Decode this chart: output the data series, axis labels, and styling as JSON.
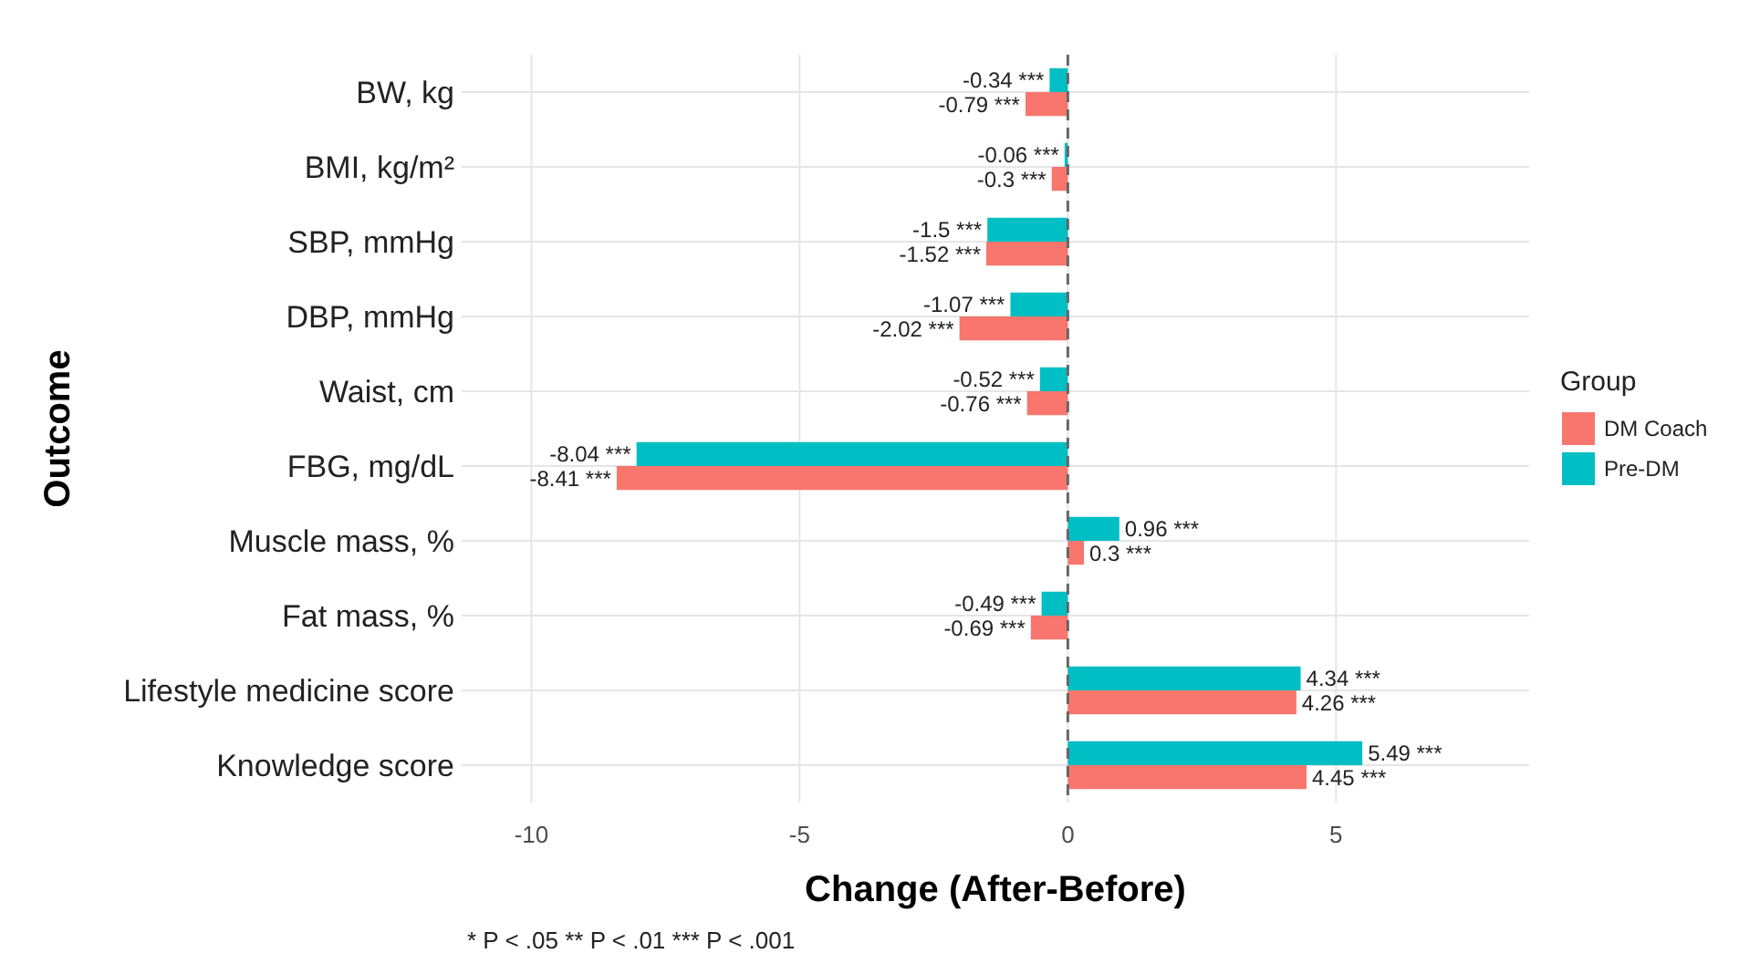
{
  "chart_data": {
    "type": "bar",
    "orientation": "horizontal",
    "xlabel": "Change (After-Before)",
    "ylabel": "Outcome",
    "legend_title": "Group",
    "legend": "right",
    "grid": true,
    "categories": [
      "BW, kg",
      "BMI, kg/m²",
      "SBP, mmHg",
      "DBP, mmHg",
      "Waist, cm",
      "FBG, mg/dL",
      "Muscle mass, %",
      "Fat mass, %",
      "Lifestyle medicine score",
      "Knowledge score"
    ],
    "xlim": [
      -11.3,
      8.6
    ],
    "xticks": [
      -10,
      -5,
      0,
      5
    ],
    "series": [
      {
        "name": "DM Coach",
        "color": "#f8766d",
        "values": [
          -0.79,
          -0.3,
          -1.52,
          -2.02,
          -0.76,
          -8.41,
          0.3,
          -0.69,
          4.26,
          4.45
        ],
        "value_labels": [
          "-0.79 ***",
          "-0.3 ***",
          "-1.52 ***",
          "-2.02 ***",
          "-0.76 ***",
          "-8.41 ***",
          "0.3 ***",
          "-0.69 ***",
          "4.26 ***",
          "4.45 ***"
        ]
      },
      {
        "name": "Pre-DM",
        "color": "#00bfc4",
        "values": [
          -0.34,
          -0.06,
          -1.5,
          -1.07,
          -0.52,
          -8.04,
          0.96,
          -0.49,
          4.34,
          5.49
        ],
        "value_labels": [
          "-0.34 ***",
          "-0.06 ***",
          "-1.5 ***",
          "-1.07 ***",
          "-0.52 ***",
          "-8.04 ***",
          "0.96 ***",
          "-0.49 ***",
          "4.34 ***",
          "5.49 ***"
        ]
      }
    ],
    "ref_lines": [
      {
        "axis": "x",
        "value": 0,
        "line_style": "dashed",
        "color": "#666666"
      }
    ],
    "annotations": [
      "* P < .05   ** P < .01   *** P < .001"
    ]
  }
}
